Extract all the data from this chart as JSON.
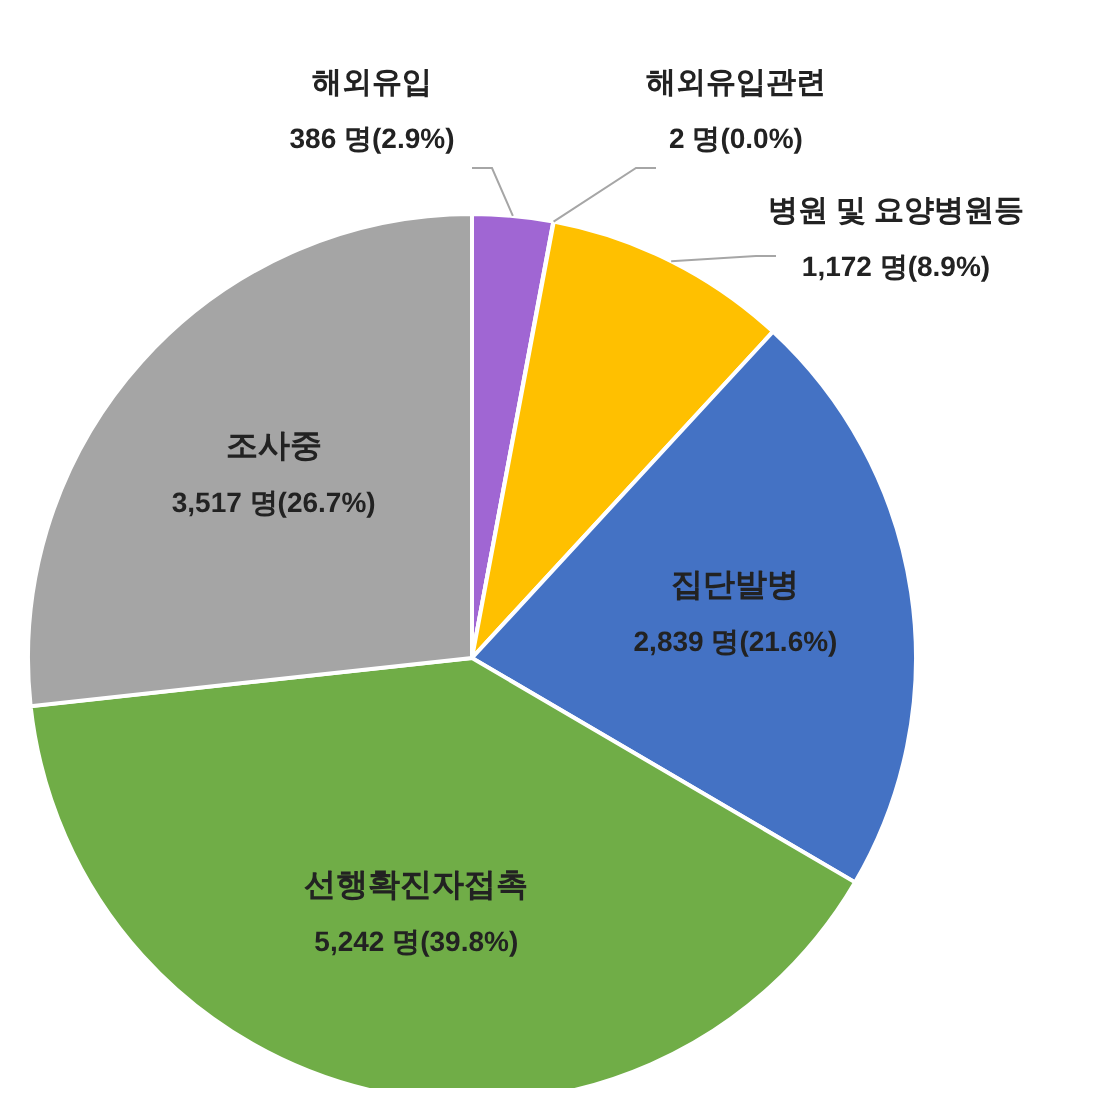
{
  "chart_data": {
    "type": "pie",
    "categories": [
      "해외유입",
      "해외유입관련",
      "병원 및 요양병원등",
      "집단발병",
      "선행확진자접촉",
      "조사중"
    ],
    "values": [
      386,
      2,
      1172,
      2839,
      5242,
      3517
    ],
    "value_labels": [
      "386 명(2.9%)",
      "2 명(0.0%)",
      "1,172 명(8.9%)",
      "2,839 명(21.6%)",
      "5,242 명(39.8%)",
      "3,517 명(26.7%)"
    ],
    "colors": [
      "#a066d3",
      "#e07b39",
      "#ffc000",
      "#4472c4",
      "#70ad47",
      "#a5a5a5"
    ],
    "legend": false
  }
}
